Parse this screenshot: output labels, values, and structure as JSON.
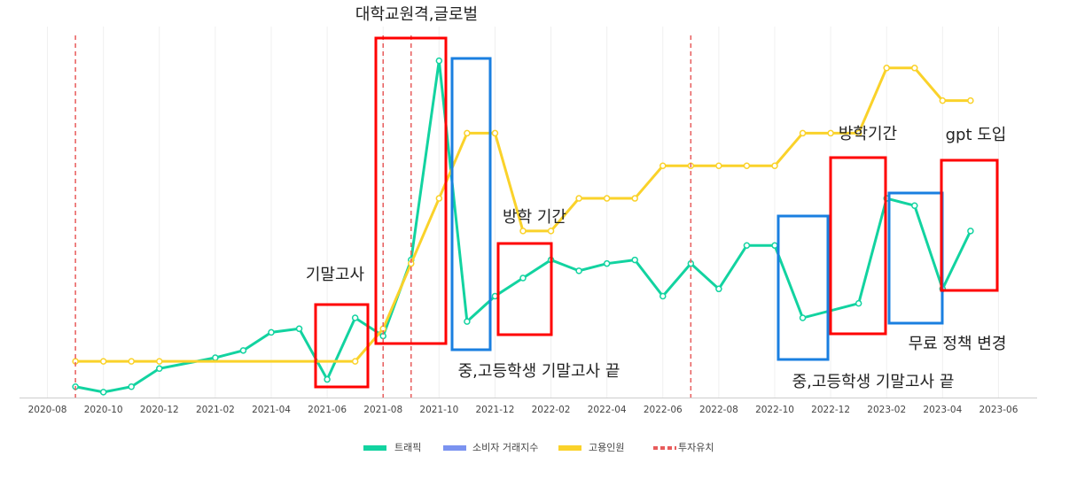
{
  "chart_data": {
    "type": "line",
    "xlim": [
      "2020-07",
      "2023-07"
    ],
    "ylim": [
      0,
      100
    ],
    "xticks": [
      "2020-08",
      "2020-10",
      "2020-12",
      "2021-02",
      "2021-04",
      "2021-06",
      "2021-08",
      "2021-10",
      "2021-12",
      "2022-02",
      "2022-04",
      "2022-06",
      "2022-08",
      "2022-10",
      "2022-12",
      "2023-02",
      "2023-04",
      "2023-06"
    ],
    "series": [
      {
        "name": "트래픽",
        "color": "#12d3a0",
        "x": [
          "2020-09",
          "2020-10",
          "2020-11",
          "2020-12",
          "2021-02",
          "2021-03",
          "2021-04",
          "2021-05",
          "2021-06",
          "2021-07",
          "2021-08",
          "2021-09",
          "2021-10",
          "2021-11",
          "2021-12",
          "2022-01",
          "2022-02",
          "2022-03",
          "2022-04",
          "2022-05",
          "2022-06",
          "2022-07",
          "2022-08",
          "2022-09",
          "2022-10",
          "2022-11",
          "2023-01",
          "2023-02",
          "2023-03",
          "2023-04",
          "2023-05"
        ],
        "values": [
          3,
          1.5,
          3,
          8,
          11,
          13,
          18,
          19,
          5,
          22,
          17,
          38,
          93,
          21,
          28,
          33,
          38,
          35,
          37,
          38,
          28,
          37,
          30,
          42,
          42,
          22,
          26,
          55,
          53,
          30,
          46
        ]
      },
      {
        "name": "소비자 거래지수",
        "color": "#7b93f0",
        "x": [],
        "values": []
      },
      {
        "name": "고용인원",
        "color": "#fad22a",
        "x": [
          "2020-09",
          "2020-10",
          "2020-11",
          "2020-12",
          "2021-07",
          "2021-08",
          "2021-09",
          "2021-10",
          "2021-11",
          "2021-12",
          "2022-01",
          "2022-02",
          "2022-03",
          "2022-04",
          "2022-05",
          "2022-06",
          "2022-07",
          "2022-08",
          "2022-09",
          "2022-10",
          "2022-11",
          "2022-12",
          "2023-01",
          "2023-02",
          "2023-03",
          "2023-04",
          "2023-05"
        ],
        "values": [
          10,
          10,
          10,
          10,
          10,
          19,
          37,
          55,
          73,
          73,
          46,
          46,
          55,
          55,
          55,
          64,
          64,
          64,
          64,
          64,
          73,
          73,
          73,
          91,
          91,
          82,
          82
        ]
      },
      {
        "name": "투자유치",
        "color": "#e85c5c",
        "x": [
          "2020-09",
          "2021-08",
          "2021-09",
          "2022-07"
        ]
      }
    ],
    "annotations": [
      "대학교원격,글로벌",
      "기말고사",
      "방학 기간",
      "중,고등학생 기말고사 끝",
      "방학기간",
      "gpt 도입",
      "무료 정책 변경",
      "중,고등학생 기말고사 끝"
    ]
  }
}
